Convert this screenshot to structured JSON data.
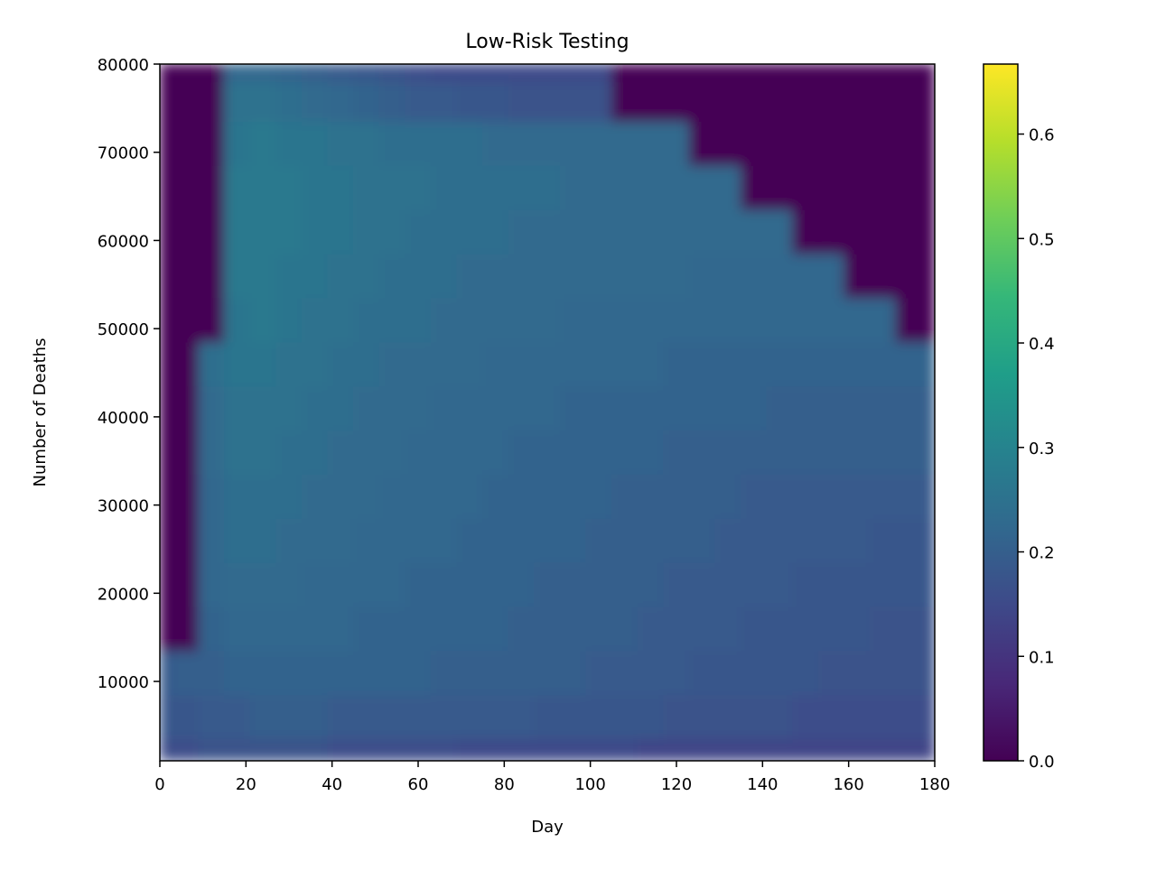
{
  "chart_data": {
    "type": "heatmap",
    "title": "Low-Risk Testing",
    "xlabel": "Day",
    "ylabel": "Number of Deaths",
    "xlim": [
      0,
      180
    ],
    "ylim": [
      1000,
      80000
    ],
    "x_ticks": [
      0,
      20,
      40,
      60,
      80,
      100,
      120,
      140,
      160,
      180
    ],
    "x_tick_labels": [
      "0",
      "20",
      "40",
      "60",
      "80",
      "100",
      "120",
      "140",
      "160",
      "180"
    ],
    "y_ticks": [
      10000,
      20000,
      30000,
      40000,
      50000,
      60000,
      70000,
      80000
    ],
    "y_tick_labels": [
      "10000",
      "20000",
      "30000",
      "40000",
      "50000",
      "60000",
      "70000",
      "80000"
    ],
    "colormap": "viridis",
    "colorbar": {
      "range": [
        0,
        0.667
      ],
      "ticks": [
        0.0,
        0.1,
        0.2,
        0.3,
        0.4,
        0.5,
        0.6
      ],
      "tick_labels": [
        "0.0",
        "0.1",
        "0.2",
        "0.3",
        "0.4",
        "0.5",
        "0.6"
      ]
    },
    "grid_x": [
      0,
      6,
      12,
      18,
      24,
      30,
      36,
      42,
      48,
      54,
      60,
      66,
      72,
      78,
      84,
      90,
      96,
      102,
      108,
      114,
      120,
      126,
      132,
      138,
      144,
      150,
      156,
      162,
      168,
      174,
      180
    ],
    "grid_y": [
      1000,
      6000,
      11000,
      16000,
      21000,
      26000,
      31000,
      36000,
      41000,
      46000,
      51000,
      56000,
      61000,
      66000,
      71000,
      76000,
      80000
    ],
    "values": [
      [
        0.16,
        0.16,
        0.17,
        0.17,
        0.17,
        0.17,
        0.17,
        0.16,
        0.16,
        0.16,
        0.16,
        0.16,
        0.15,
        0.15,
        0.15,
        0.15,
        0.15,
        0.15,
        0.15,
        0.14,
        0.14,
        0.14,
        0.14,
        0.14,
        0.14,
        0.14,
        0.14,
        0.14,
        0.14,
        0.14,
        0.14
      ],
      [
        0.18,
        0.18,
        0.19,
        0.19,
        0.2,
        0.2,
        0.2,
        0.19,
        0.19,
        0.19,
        0.19,
        0.19,
        0.19,
        0.19,
        0.19,
        0.18,
        0.18,
        0.18,
        0.18,
        0.18,
        0.17,
        0.17,
        0.17,
        0.17,
        0.17,
        0.16,
        0.16,
        0.16,
        0.16,
        0.16,
        0.16
      ],
      [
        0.19,
        0.2,
        0.2,
        0.21,
        0.21,
        0.21,
        0.21,
        0.21,
        0.21,
        0.21,
        0.21,
        0.2,
        0.2,
        0.2,
        0.2,
        0.2,
        0.2,
        0.19,
        0.19,
        0.19,
        0.19,
        0.18,
        0.18,
        0.18,
        0.18,
        0.18,
        0.17,
        0.17,
        0.17,
        0.17,
        0.17
      ],
      [
        0.0,
        0.0,
        0.21,
        0.22,
        0.22,
        0.22,
        0.22,
        0.22,
        0.21,
        0.21,
        0.21,
        0.21,
        0.21,
        0.21,
        0.2,
        0.2,
        0.2,
        0.2,
        0.2,
        0.19,
        0.19,
        0.19,
        0.19,
        0.18,
        0.18,
        0.18,
        0.18,
        0.18,
        0.17,
        0.17,
        0.17
      ],
      [
        0.0,
        0.0,
        0.22,
        0.23,
        0.23,
        0.23,
        0.22,
        0.22,
        0.22,
        0.22,
        0.21,
        0.21,
        0.21,
        0.21,
        0.21,
        0.2,
        0.2,
        0.2,
        0.2,
        0.2,
        0.19,
        0.19,
        0.19,
        0.19,
        0.19,
        0.18,
        0.18,
        0.18,
        0.18,
        0.18,
        0.18
      ],
      [
        0.0,
        0.0,
        0.22,
        0.24,
        0.24,
        0.23,
        0.23,
        0.23,
        0.22,
        0.22,
        0.22,
        0.22,
        0.21,
        0.21,
        0.21,
        0.21,
        0.21,
        0.2,
        0.2,
        0.2,
        0.2,
        0.2,
        0.19,
        0.19,
        0.19,
        0.19,
        0.19,
        0.19,
        0.18,
        0.18,
        0.18
      ],
      [
        0.0,
        0.0,
        0.22,
        0.24,
        0.24,
        0.24,
        0.23,
        0.23,
        0.23,
        0.22,
        0.22,
        0.22,
        0.22,
        0.21,
        0.21,
        0.21,
        0.21,
        0.21,
        0.2,
        0.2,
        0.2,
        0.2,
        0.2,
        0.19,
        0.19,
        0.19,
        0.19,
        0.19,
        0.19,
        0.19,
        0.19
      ],
      [
        0.0,
        0.0,
        0.23,
        0.25,
        0.25,
        0.24,
        0.24,
        0.23,
        0.23,
        0.23,
        0.22,
        0.22,
        0.22,
        0.22,
        0.21,
        0.21,
        0.21,
        0.21,
        0.21,
        0.21,
        0.2,
        0.2,
        0.2,
        0.2,
        0.2,
        0.2,
        0.2,
        0.2,
        0.2,
        0.2,
        0.2
      ],
      [
        0.0,
        0.0,
        0.23,
        0.25,
        0.25,
        0.25,
        0.24,
        0.24,
        0.23,
        0.23,
        0.23,
        0.22,
        0.22,
        0.22,
        0.22,
        0.22,
        0.21,
        0.21,
        0.21,
        0.21,
        0.21,
        0.21,
        0.21,
        0.21,
        0.2,
        0.2,
        0.2,
        0.2,
        0.2,
        0.2,
        0.2
      ],
      [
        0.0,
        0.0,
        0.24,
        0.26,
        0.26,
        0.25,
        0.25,
        0.24,
        0.24,
        0.23,
        0.23,
        0.23,
        0.23,
        0.22,
        0.22,
        0.22,
        0.22,
        0.22,
        0.22,
        0.22,
        0.21,
        0.21,
        0.21,
        0.21,
        0.21,
        0.21,
        0.21,
        0.21,
        0.21,
        0.21,
        0.21
      ],
      [
        0.0,
        0.0,
        0.0,
        0.26,
        0.27,
        0.26,
        0.25,
        0.25,
        0.24,
        0.24,
        0.24,
        0.23,
        0.23,
        0.23,
        0.23,
        0.23,
        0.22,
        0.22,
        0.22,
        0.22,
        0.22,
        0.22,
        0.22,
        0.22,
        0.22,
        0.22,
        0.22,
        0.22,
        0.22,
        0.0,
        0.0
      ],
      [
        0.0,
        0.0,
        0.0,
        0.27,
        0.27,
        0.26,
        0.26,
        0.25,
        0.25,
        0.24,
        0.24,
        0.24,
        0.23,
        0.23,
        0.23,
        0.23,
        0.23,
        0.23,
        0.23,
        0.23,
        0.23,
        0.22,
        0.22,
        0.22,
        0.22,
        0.22,
        0.22,
        0.0,
        0.0,
        0.0,
        0.0
      ],
      [
        0.0,
        0.0,
        0.0,
        0.27,
        0.27,
        0.27,
        0.26,
        0.26,
        0.25,
        0.25,
        0.24,
        0.24,
        0.24,
        0.24,
        0.23,
        0.23,
        0.23,
        0.23,
        0.23,
        0.23,
        0.23,
        0.23,
        0.23,
        0.23,
        0.23,
        0.0,
        0.0,
        0.0,
        0.0,
        0.0,
        0.0
      ],
      [
        0.0,
        0.0,
        0.0,
        0.27,
        0.27,
        0.27,
        0.26,
        0.26,
        0.25,
        0.25,
        0.25,
        0.24,
        0.24,
        0.24,
        0.24,
        0.24,
        0.23,
        0.23,
        0.23,
        0.23,
        0.23,
        0.23,
        0.23,
        0.0,
        0.0,
        0.0,
        0.0,
        0.0,
        0.0,
        0.0,
        0.0
      ],
      [
        0.0,
        0.0,
        0.0,
        0.26,
        0.27,
        0.26,
        0.26,
        0.25,
        0.25,
        0.24,
        0.24,
        0.24,
        0.24,
        0.23,
        0.23,
        0.23,
        0.23,
        0.23,
        0.23,
        0.23,
        0.23,
        0.0,
        0.0,
        0.0,
        0.0,
        0.0,
        0.0,
        0.0,
        0.0,
        0.0,
        0.0
      ],
      [
        0.0,
        0.0,
        0.0,
        0.25,
        0.25,
        0.24,
        0.23,
        0.22,
        0.21,
        0.2,
        0.19,
        0.19,
        0.18,
        0.18,
        0.17,
        0.17,
        0.17,
        0.17,
        0.0,
        0.0,
        0.0,
        0.0,
        0.0,
        0.0,
        0.0,
        0.0,
        0.0,
        0.0,
        0.0,
        0.0,
        0.0
      ],
      [
        0.0,
        0.0,
        0.0,
        0.22,
        0.22,
        0.21,
        0.2,
        0.19,
        0.18,
        0.17,
        0.16,
        0.15,
        0.15,
        0.15,
        0.15,
        0.15,
        0.15,
        0.15,
        0.0,
        0.0,
        0.0,
        0.0,
        0.0,
        0.0,
        0.0,
        0.0,
        0.0,
        0.0,
        0.0,
        0.0,
        0.0
      ]
    ]
  }
}
